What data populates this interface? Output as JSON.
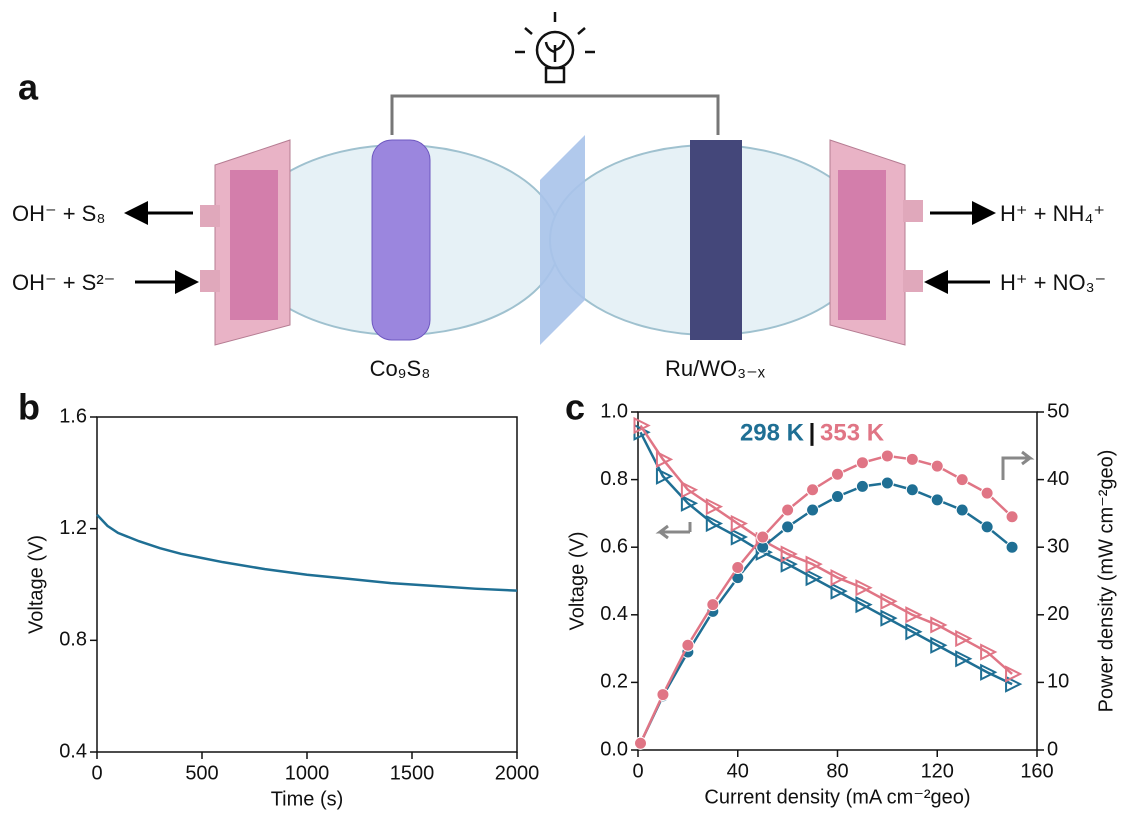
{
  "panel_labels": [
    "a",
    "b",
    "c"
  ],
  "diagram": {
    "left_out": "OH⁻ + S₈",
    "left_in": "OH⁻ + S²⁻",
    "right_out": "H⁺ + NH₄⁺",
    "right_in": "H⁺ + NO₃⁻",
    "anode": "Co₉S₈",
    "cathode": "Ru/WO₃₋ₓ"
  },
  "chart_data": [
    {
      "type": "line",
      "x_label": "Time (s)",
      "y_label": "Voltage (V)",
      "x": [
        0,
        50,
        100,
        200,
        300,
        400,
        500,
        600,
        800,
        1000,
        1200,
        1400,
        1600,
        1800,
        2000
      ],
      "series": [
        {
          "color": "#1f6f94",
          "values": [
            1.25,
            1.21,
            1.185,
            1.155,
            1.13,
            1.11,
            1.095,
            1.08,
            1.055,
            1.035,
            1.02,
            1.005,
            0.995,
            0.985,
            0.978
          ]
        }
      ],
      "xlim": [
        0,
        2000
      ],
      "xticks": [
        0,
        500,
        1000,
        1500,
        2000
      ],
      "ylim": [
        0.4,
        1.6
      ],
      "yticks": [
        0.4,
        0.8,
        1.2,
        1.6
      ]
    },
    {
      "type": "line",
      "x_label": "Current density (mA cm⁻²geo)",
      "y_label": "Voltage (V)",
      "y2_label": "Power density (mW cm⁻²geo)",
      "legend_separator": "|",
      "x": [
        1,
        10,
        20,
        30,
        40,
        50,
        60,
        70,
        80,
        90,
        100,
        110,
        120,
        130,
        140,
        150
      ],
      "series": [
        {
          "name": "298 K",
          "color": "#1f6f94",
          "marker": "triangle",
          "values": [
            0.94,
            0.81,
            0.73,
            0.67,
            0.63,
            0.585,
            0.55,
            0.51,
            0.47,
            0.43,
            0.39,
            0.35,
            0.31,
            0.27,
            0.23,
            0.195
          ]
        },
        {
          "name": "353 K",
          "color": "#e07585",
          "marker": "triangle",
          "values": [
            0.96,
            0.86,
            0.77,
            0.72,
            0.67,
            0.62,
            0.58,
            0.55,
            0.51,
            0.48,
            0.44,
            0.4,
            0.37,
            0.33,
            0.29,
            0.225
          ]
        },
        {
          "name": "298 K",
          "color": "#1f6f94",
          "marker": "circle",
          "axis": "y2",
          "values": [
            1,
            8,
            14.5,
            20.5,
            25.5,
            30,
            33,
            35.5,
            37.5,
            39,
            39.5,
            38.5,
            37,
            35.5,
            33,
            30
          ]
        },
        {
          "name": "353 K",
          "color": "#e07585",
          "marker": "circle",
          "axis": "y2",
          "values": [
            1,
            8.2,
            15.5,
            21.5,
            27,
            31.5,
            35.5,
            38.5,
            40.8,
            42.5,
            43.5,
            43,
            42,
            40,
            38,
            34.5
          ]
        }
      ],
      "xlim": [
        0,
        160
      ],
      "xticks": [
        0,
        40,
        80,
        120,
        160
      ],
      "ylim": [
        0,
        1
      ],
      "yticks": [
        {
          "value": 0,
          "label": "0.0"
        },
        0.2,
        0.4,
        0.6,
        0.8,
        {
          "value": 1,
          "label": "1.0"
        }
      ],
      "y2lim": [
        0,
        50
      ],
      "y2ticks": [
        0,
        10,
        20,
        30,
        40,
        50
      ]
    }
  ]
}
